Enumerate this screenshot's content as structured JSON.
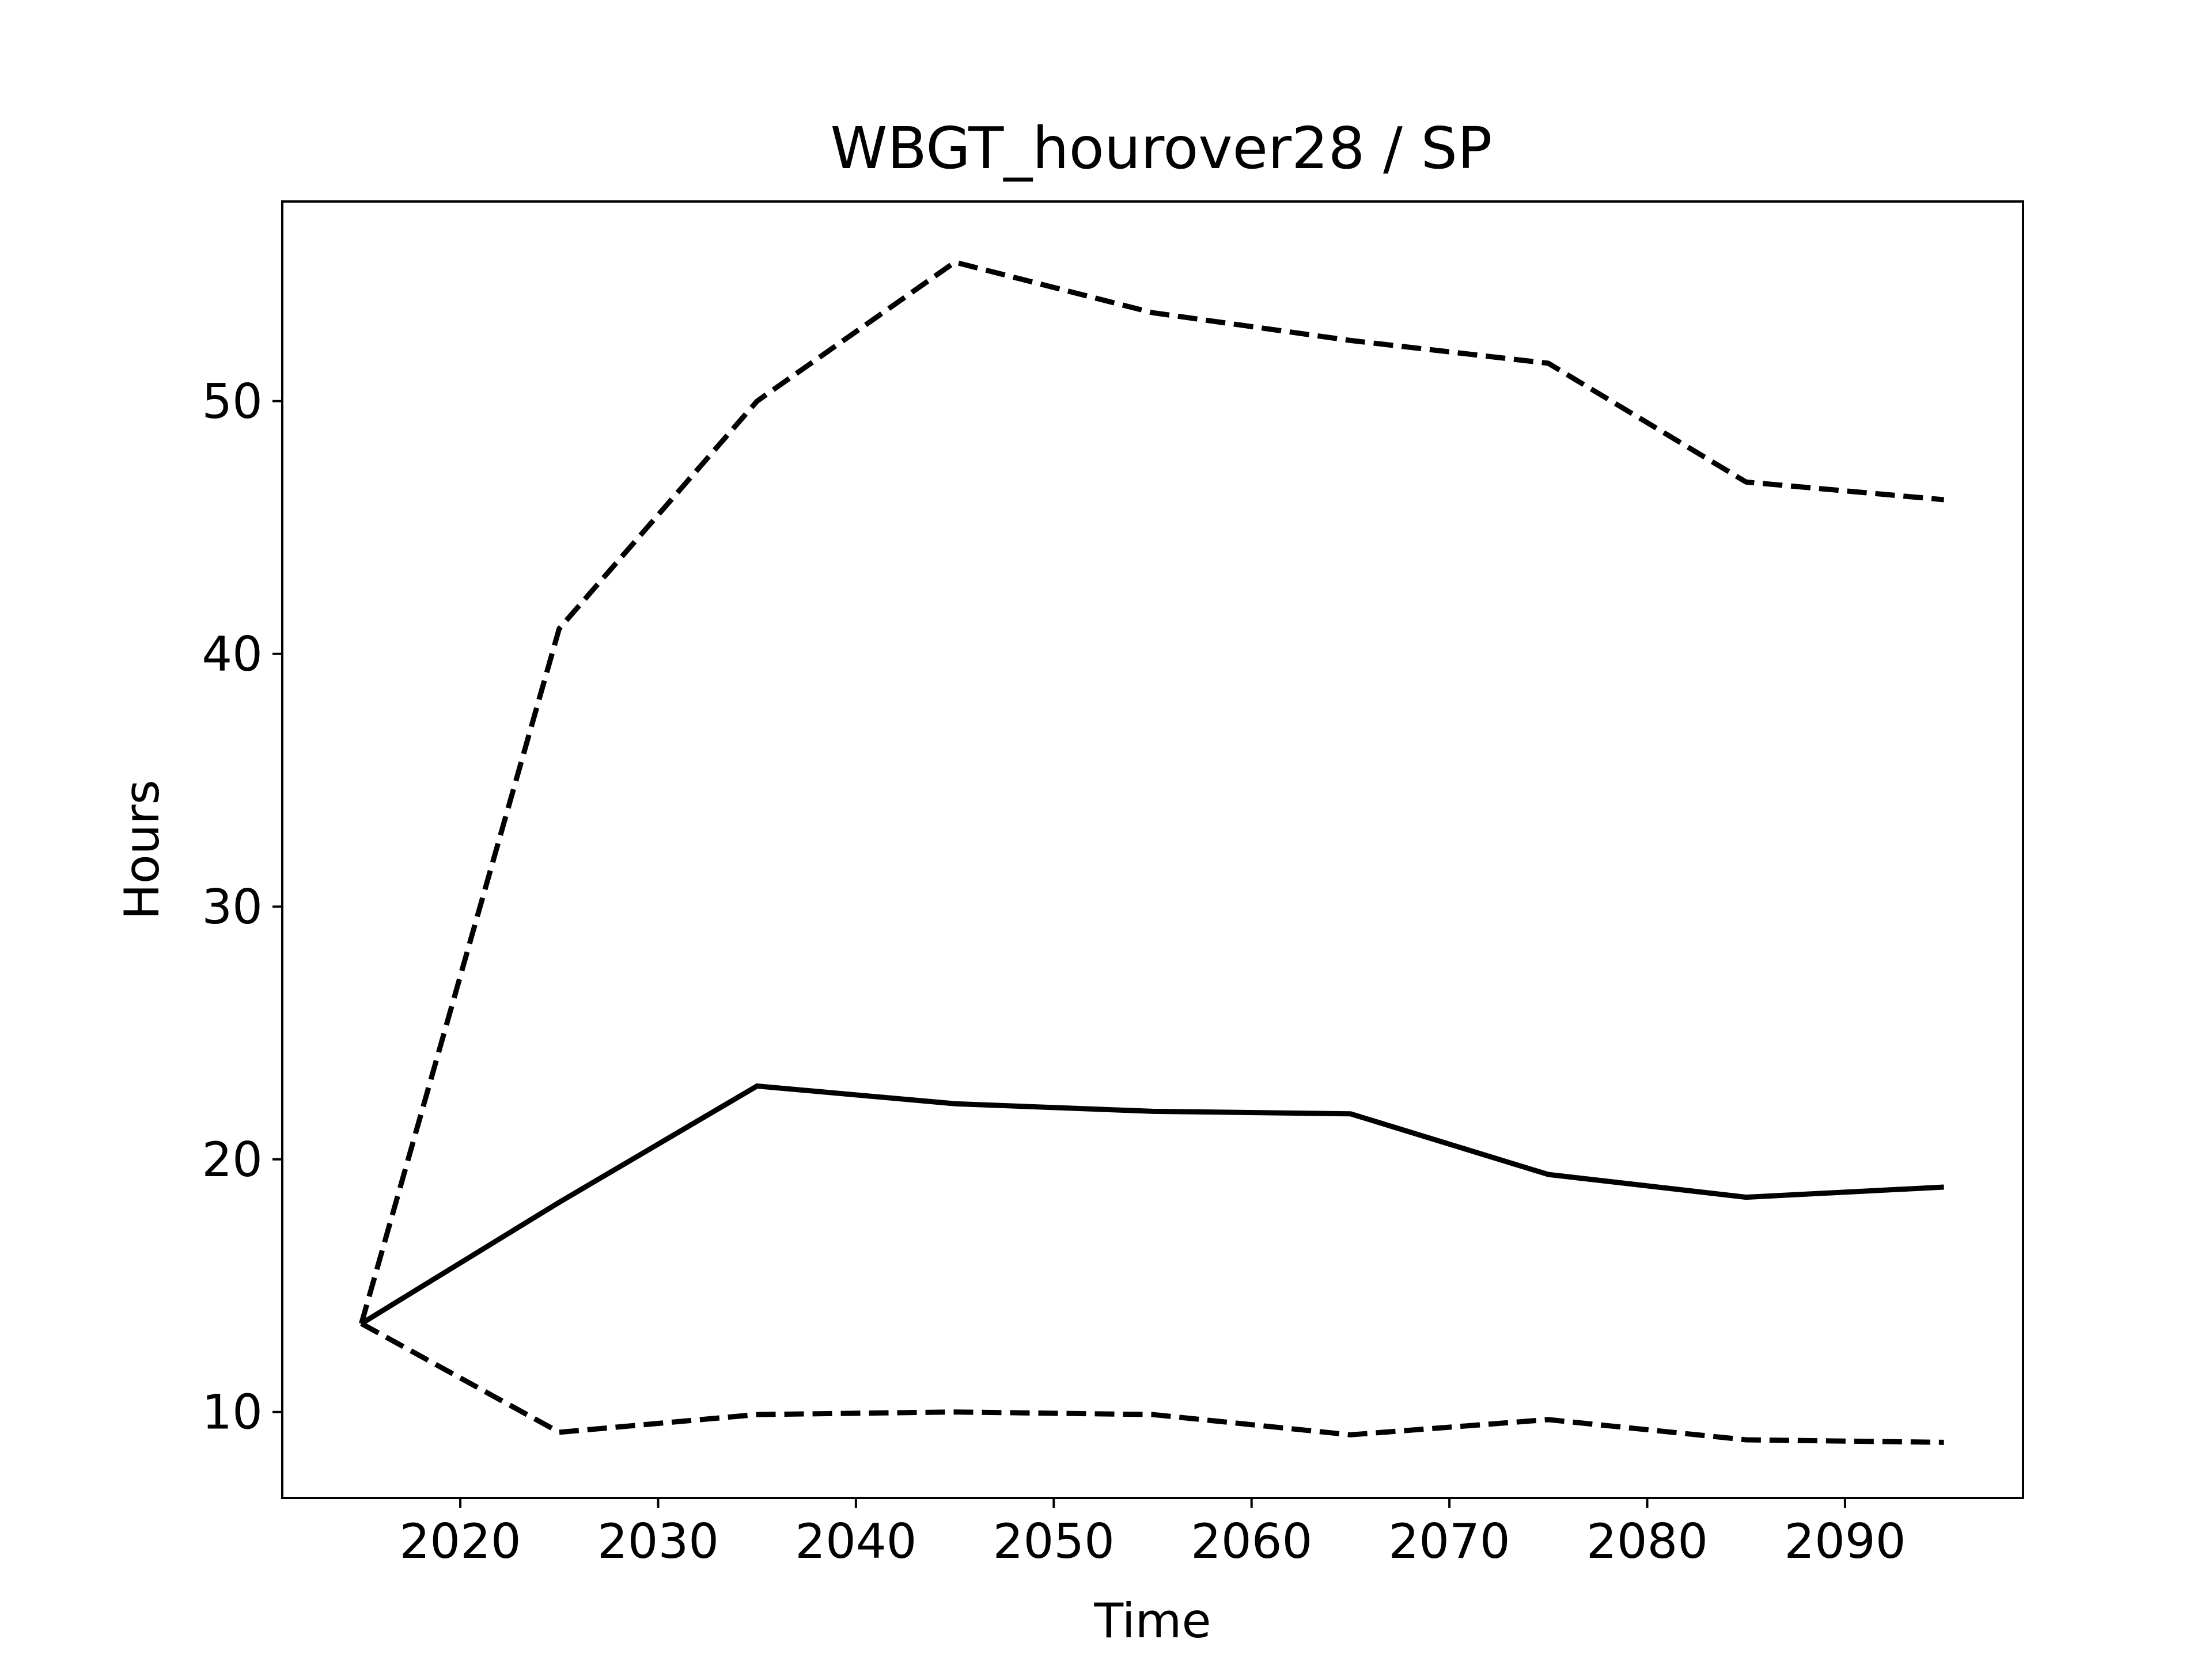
{
  "chart_data": {
    "type": "line",
    "title": "WBGT_hourover28 / SP",
    "xlabel": "Time",
    "ylabel": "Hours",
    "xlim": [
      2011,
      2099
    ],
    "ylim": [
      6.6,
      57.9
    ],
    "x_ticks": [
      2020,
      2030,
      2040,
      2050,
      2060,
      2070,
      2080,
      2090
    ],
    "y_ticks": [
      10,
      20,
      30,
      40,
      50
    ],
    "grid": false,
    "legend": "none",
    "x": [
      2015,
      2025,
      2035,
      2045,
      2055,
      2065,
      2075,
      2085,
      2095
    ],
    "series": [
      {
        "style": "solid",
        "color": "#000000",
        "values": [
          13.5,
          18.3,
          22.9,
          22.2,
          21.9,
          21.8,
          19.4,
          18.5,
          18.9
        ]
      },
      {
        "style": "dashed",
        "color": "#000000",
        "values": [
          13.5,
          41.0,
          50.0,
          55.5,
          53.5,
          52.4,
          51.5,
          46.8,
          46.1
        ]
      },
      {
        "style": "dashed",
        "color": "#000000",
        "values": [
          13.5,
          9.2,
          9.9,
          10.0,
          9.9,
          9.1,
          9.7,
          8.9,
          8.8
        ]
      }
    ]
  }
}
